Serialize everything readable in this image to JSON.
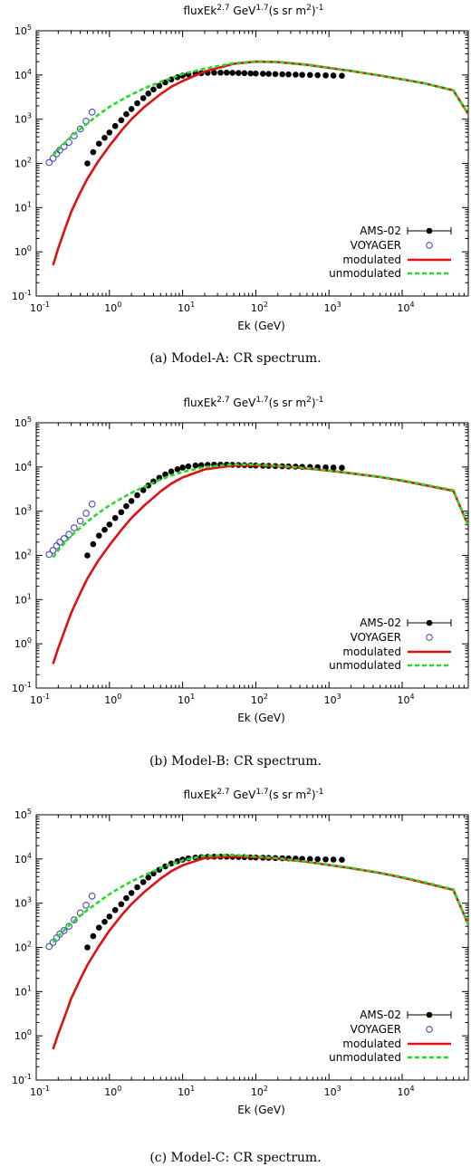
{
  "figure": {
    "panels": [
      {
        "caption": "(a) Model-A: CR spectrum."
      },
      {
        "caption": "(b) Model-B: CR spectrum."
      },
      {
        "caption": "(c) Model-C: CR spectrum."
      }
    ]
  },
  "colors": {
    "ams": "#000000",
    "voyager": "#3a3ab0",
    "modulated": "#dd1111",
    "unmodulated": "#22dd22"
  },
  "chart_data": [
    {
      "type": "line",
      "title_main": "fluxEk",
      "title_sup1": "2.7",
      "title_mid": " GeV",
      "title_sup2": "1.7",
      "title_tail": "(s sr m",
      "title_sup3": "2",
      "title_end": ")",
      "title_exp": "-1",
      "xlabel": "Ek (GeV)",
      "xscale": "log",
      "yscale": "log",
      "xlim": [
        0.1,
        80000
      ],
      "ylim": [
        0.1,
        100000
      ],
      "xticks": [
        "10-1",
        "100",
        "101",
        "102",
        "103",
        "104"
      ],
      "yticks": [
        "10-1",
        "100",
        "101",
        "102",
        "103",
        "104",
        "105"
      ],
      "legend_position": "bottom-right",
      "series": [
        {
          "name": "AMS-02",
          "style": "filled-circle",
          "x": [
            0.5,
            0.6,
            0.72,
            0.86,
            1.0,
            1.2,
            1.45,
            1.7,
            2.0,
            2.4,
            2.9,
            3.4,
            4.0,
            4.8,
            5.8,
            7,
            8.5,
            10,
            12,
            15,
            18,
            22,
            27,
            33,
            40,
            48,
            58,
            70,
            85,
            100,
            125,
            150,
            185,
            230,
            280,
            350,
            430,
            550,
            700,
            900,
            1150,
            1500
          ],
          "y": [
            100,
            180,
            280,
            380,
            500,
            700,
            950,
            1300,
            1700,
            2300,
            3000,
            3800,
            4700,
            5700,
            6800,
            7900,
            8900,
            9700,
            10300,
            10800,
            11000,
            11200,
            11300,
            11300,
            11300,
            11200,
            11100,
            11000,
            10900,
            10800,
            10700,
            10600,
            10500,
            10400,
            10300,
            10200,
            10100,
            10000,
            9900,
            9800,
            9700,
            9600
          ]
        },
        {
          "name": "VOYAGER",
          "style": "open-circle",
          "x": [
            0.15,
            0.17,
            0.19,
            0.21,
            0.24,
            0.28,
            0.33,
            0.4,
            0.48,
            0.58
          ],
          "y": [
            105,
            130,
            165,
            200,
            240,
            300,
            420,
            600,
            900,
            1450
          ]
        },
        {
          "name": "modulated",
          "style": "line",
          "x": [
            0.17,
            0.2,
            0.25,
            0.3,
            0.4,
            0.5,
            0.7,
            1,
            1.5,
            2,
            3,
            5,
            7,
            10,
            20,
            50,
            100,
            200,
            500,
            1000,
            2000,
            5000,
            10000,
            20000,
            50000,
            80000
          ],
          "y": [
            0.5,
            1.2,
            3.5,
            8,
            22,
            45,
            110,
            250,
            580,
            1000,
            1900,
            3700,
            5400,
            7300,
            12000,
            18000,
            20000,
            19600,
            17000,
            14500,
            12300,
            9700,
            8000,
            6500,
            4500,
            1300
          ]
        },
        {
          "name": "unmodulated",
          "style": "dashed",
          "x": [
            0.17,
            0.2,
            0.25,
            0.3,
            0.4,
            0.5,
            0.7,
            1,
            1.5,
            2,
            3,
            5,
            7,
            10,
            20,
            50,
            100,
            200,
            500,
            1000,
            2000,
            5000,
            10000,
            20000,
            50000,
            80000
          ],
          "y": [
            150,
            200,
            300,
            400,
            600,
            800,
            1250,
            1900,
            2800,
            3600,
            5000,
            7000,
            8500,
            10500,
            14000,
            18500,
            20300,
            19800,
            17200,
            14600,
            12400,
            9800,
            8000,
            6500,
            4500,
            1300
          ]
        }
      ]
    },
    {
      "type": "line",
      "title_main": "fluxEk",
      "title_sup1": "2.7",
      "title_mid": " GeV",
      "title_sup2": "1.7",
      "title_tail": "(s sr m",
      "title_sup3": "2",
      "title_end": ")",
      "title_exp": "-1",
      "xlabel": "Ek (GeV)",
      "xscale": "log",
      "yscale": "log",
      "xlim": [
        0.1,
        80000
      ],
      "ylim": [
        0.1,
        100000
      ],
      "xticks": [
        "10-1",
        "100",
        "101",
        "102",
        "103",
        "104"
      ],
      "yticks": [
        "10-1",
        "100",
        "101",
        "102",
        "103",
        "104",
        "105"
      ],
      "legend_position": "bottom-right",
      "series": [
        {
          "name": "AMS-02",
          "style": "filled-circle",
          "x": [
            0.5,
            0.6,
            0.72,
            0.86,
            1.0,
            1.2,
            1.45,
            1.7,
            2.0,
            2.4,
            2.9,
            3.4,
            4.0,
            4.8,
            5.8,
            7,
            8.5,
            10,
            12,
            15,
            18,
            22,
            27,
            33,
            40,
            48,
            58,
            70,
            85,
            100,
            125,
            150,
            185,
            230,
            280,
            350,
            430,
            550,
            700,
            900,
            1150,
            1500
          ],
          "y": [
            100,
            180,
            280,
            380,
            500,
            700,
            950,
            1300,
            1700,
            2300,
            3000,
            3800,
            4700,
            5700,
            6800,
            7900,
            8900,
            9700,
            10300,
            10800,
            11000,
            11200,
            11300,
            11300,
            11300,
            11200,
            11100,
            11000,
            10900,
            10800,
            10700,
            10600,
            10500,
            10400,
            10300,
            10200,
            10100,
            10000,
            9900,
            9800,
            9700,
            9600
          ]
        },
        {
          "name": "VOYAGER",
          "style": "open-circle",
          "x": [
            0.15,
            0.17,
            0.19,
            0.21,
            0.24,
            0.28,
            0.33,
            0.4,
            0.48,
            0.58
          ],
          "y": [
            105,
            130,
            165,
            200,
            240,
            300,
            420,
            600,
            900,
            1450
          ]
        },
        {
          "name": "modulated",
          "style": "line",
          "x": [
            0.17,
            0.2,
            0.25,
            0.3,
            0.4,
            0.5,
            0.7,
            1,
            1.5,
            2,
            3,
            5,
            7,
            10,
            20,
            50,
            100,
            200,
            500,
            1000,
            2000,
            5000,
            10000,
            20000,
            50000,
            80000
          ],
          "y": [
            0.35,
            0.8,
            2.2,
            5,
            14,
            30,
            75,
            170,
            400,
            700,
            1350,
            2800,
            4200,
            5800,
            8800,
            10800,
            10900,
            10500,
            9300,
            8200,
            7200,
            5900,
            4900,
            3900,
            2900,
            470
          ]
        },
        {
          "name": "unmodulated",
          "style": "dashed",
          "x": [
            0.17,
            0.2,
            0.25,
            0.3,
            0.4,
            0.5,
            0.7,
            1,
            1.5,
            2,
            3,
            5,
            7,
            10,
            20,
            50,
            100,
            200,
            500,
            1000,
            2000,
            5000,
            10000,
            20000,
            50000,
            80000
          ],
          "y": [
            90,
            130,
            200,
            280,
            420,
            580,
            900,
            1350,
            2000,
            2600,
            3600,
            5200,
            6400,
            7700,
            10000,
            11500,
            11300,
            10700,
            9400,
            8300,
            7300,
            6000,
            5000,
            4000,
            3000,
            470
          ]
        }
      ]
    },
    {
      "type": "line",
      "title_main": "fluxEk",
      "title_sup1": "2.7",
      "title_mid": " GeV",
      "title_sup2": "1.7",
      "title_tail": "(s sr m",
      "title_sup3": "2",
      "title_end": ")",
      "title_exp": "-1",
      "xlabel": "Ek (GeV)",
      "xscale": "log",
      "yscale": "log",
      "xlim": [
        0.1,
        80000
      ],
      "ylim": [
        0.1,
        100000
      ],
      "xticks": [
        "10-1",
        "100",
        "101",
        "102",
        "103",
        "104"
      ],
      "yticks": [
        "10-1",
        "100",
        "101",
        "102",
        "103",
        "104",
        "105"
      ],
      "legend_position": "bottom-right",
      "series": [
        {
          "name": "AMS-02",
          "style": "filled-circle",
          "x": [
            0.5,
            0.6,
            0.72,
            0.86,
            1.0,
            1.2,
            1.45,
            1.7,
            2.0,
            2.4,
            2.9,
            3.4,
            4.0,
            4.8,
            5.8,
            7,
            8.5,
            10,
            12,
            15,
            18,
            22,
            27,
            33,
            40,
            48,
            58,
            70,
            85,
            100,
            125,
            150,
            185,
            230,
            280,
            350,
            430,
            550,
            700,
            900,
            1150,
            1500
          ],
          "y": [
            100,
            180,
            280,
            380,
            500,
            700,
            950,
            1300,
            1700,
            2300,
            3000,
            3800,
            4700,
            5700,
            6800,
            7900,
            8900,
            9700,
            10300,
            10800,
            11000,
            11200,
            11300,
            11300,
            11300,
            11200,
            11100,
            11000,
            10900,
            10800,
            10700,
            10600,
            10500,
            10400,
            10300,
            10200,
            10100,
            10000,
            9900,
            9800,
            9700,
            9600
          ]
        },
        {
          "name": "VOYAGER",
          "style": "open-circle",
          "x": [
            0.15,
            0.17,
            0.19,
            0.21,
            0.24,
            0.28,
            0.33,
            0.4,
            0.48,
            0.58
          ],
          "y": [
            105,
            130,
            165,
            200,
            240,
            300,
            420,
            600,
            900,
            1450
          ]
        },
        {
          "name": "modulated",
          "style": "line",
          "x": [
            0.17,
            0.2,
            0.25,
            0.3,
            0.4,
            0.5,
            0.7,
            1,
            1.5,
            2,
            3,
            5,
            7,
            10,
            20,
            50,
            100,
            200,
            500,
            1000,
            2000,
            5000,
            10000,
            20000,
            50000,
            80000
          ],
          "y": [
            0.5,
            1.1,
            3,
            7,
            19,
            40,
            100,
            240,
            560,
            950,
            1800,
            3600,
            5300,
            7200,
            10500,
            11500,
            11000,
            10200,
            8600,
            7300,
            6200,
            4800,
            3800,
            2900,
            2000,
            330
          ]
        },
        {
          "name": "unmodulated",
          "style": "dashed",
          "x": [
            0.17,
            0.2,
            0.25,
            0.3,
            0.4,
            0.5,
            0.7,
            1,
            1.5,
            2,
            3,
            5,
            7,
            10,
            20,
            50,
            100,
            200,
            500,
            1000,
            2000,
            5000,
            10000,
            20000,
            50000,
            80000
          ],
          "y": [
            130,
            180,
            260,
            350,
            520,
            700,
            1050,
            1600,
            2400,
            3100,
            4300,
            6200,
            7700,
            9300,
            11800,
            12300,
            11400,
            10400,
            8700,
            7400,
            6300,
            4900,
            3900,
            3000,
            2050,
            330
          ]
        }
      ]
    }
  ]
}
